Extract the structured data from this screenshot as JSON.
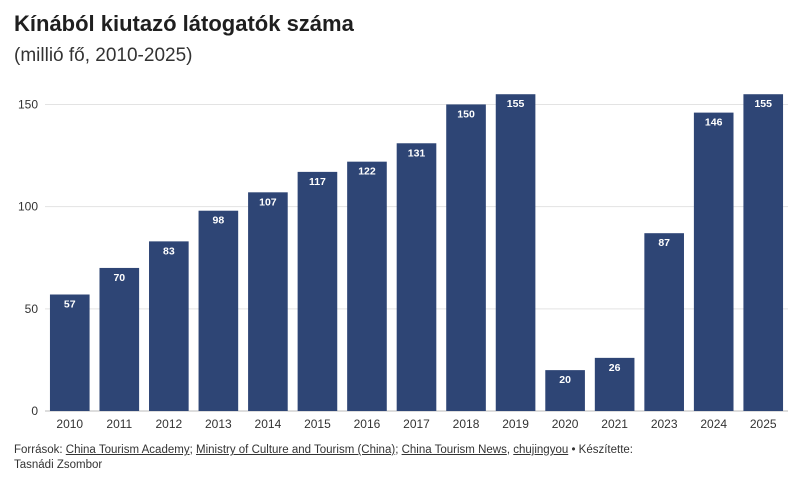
{
  "chart_data": {
    "type": "bar",
    "title": "Kínából kiutazó látogatók száma",
    "subtitle": "(millió fő, 2010-2025)",
    "categories": [
      "2010",
      "2011",
      "2012",
      "2013",
      "2014",
      "2015",
      "2016",
      "2017",
      "2018",
      "2019",
      "2020",
      "2021",
      "2023",
      "2024",
      "2025"
    ],
    "values": [
      57,
      70,
      83,
      98,
      107,
      117,
      122,
      131,
      150,
      155,
      20,
      26,
      87,
      146,
      155
    ],
    "ylim": [
      0,
      160
    ],
    "yticks": [
      0,
      50,
      100,
      150
    ],
    "grid": true,
    "bar_color": "#2e4575",
    "label_color": "#ffffff"
  },
  "footer": {
    "prefix": "Források:",
    "sources": [
      "China Tourism Academy",
      "Ministry of Culture and Tourism (China)",
      "China Tourism News",
      "chujingyou"
    ],
    "separators": [
      ";",
      ";",
      ","
    ],
    "credit_label": "• Készítette:",
    "author": "Tasnádi Zsombor"
  }
}
